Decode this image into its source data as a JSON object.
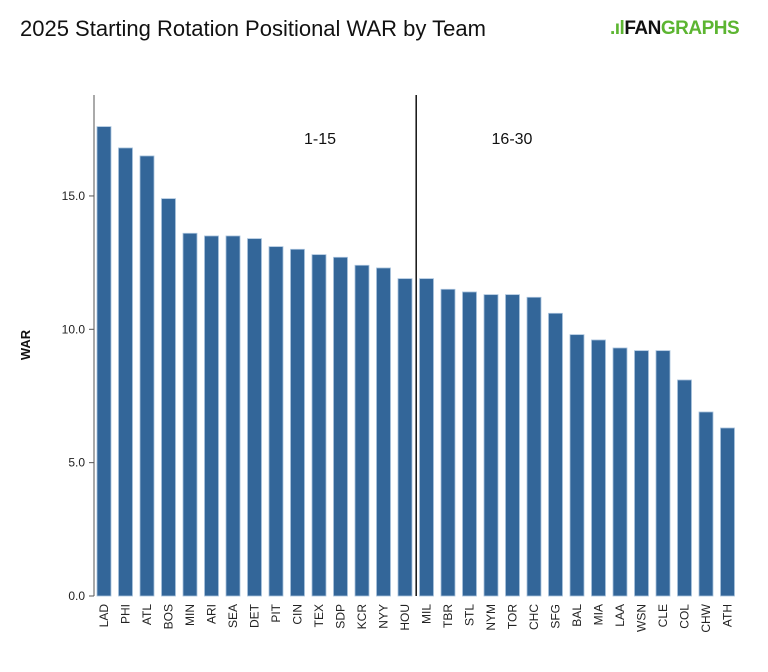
{
  "header": {
    "title": "2025 Starting Rotation Positional WAR by Team",
    "logo": "FANGRAPHS"
  },
  "colors": {
    "bar": "#336699",
    "bar_edge": "#a9c3dd",
    "logo_green": "#5cb531"
  },
  "chart_data": {
    "type": "bar",
    "title": "2025 Starting Rotation Positional WAR by Team",
    "xlabel": "",
    "ylabel": "WAR",
    "ylim": [
      0,
      18.8
    ],
    "yticks": [
      "0.0",
      "5.0",
      "10.0",
      "15.0"
    ],
    "grid": false,
    "annotations": [
      "1-15",
      "16-30"
    ],
    "categories": [
      "LAD",
      "PHI",
      "ATL",
      "BOS",
      "MIN",
      "ARI",
      "SEA",
      "DET",
      "PIT",
      "CIN",
      "TEX",
      "SDP",
      "KCR",
      "NYY",
      "HOU",
      "MIL",
      "TBR",
      "STL",
      "NYM",
      "TOR",
      "CHC",
      "SFG",
      "BAL",
      "MIA",
      "LAA",
      "WSN",
      "CLE",
      "COL",
      "CHW",
      "ATH"
    ],
    "values": [
      17.6,
      16.8,
      16.5,
      14.9,
      13.6,
      13.5,
      13.5,
      13.4,
      13.1,
      13.0,
      12.8,
      12.7,
      12.4,
      12.3,
      11.9,
      11.9,
      11.5,
      11.4,
      11.3,
      11.3,
      11.2,
      10.6,
      9.8,
      9.6,
      9.3,
      9.2,
      9.2,
      8.1,
      6.9,
      6.3
    ]
  }
}
